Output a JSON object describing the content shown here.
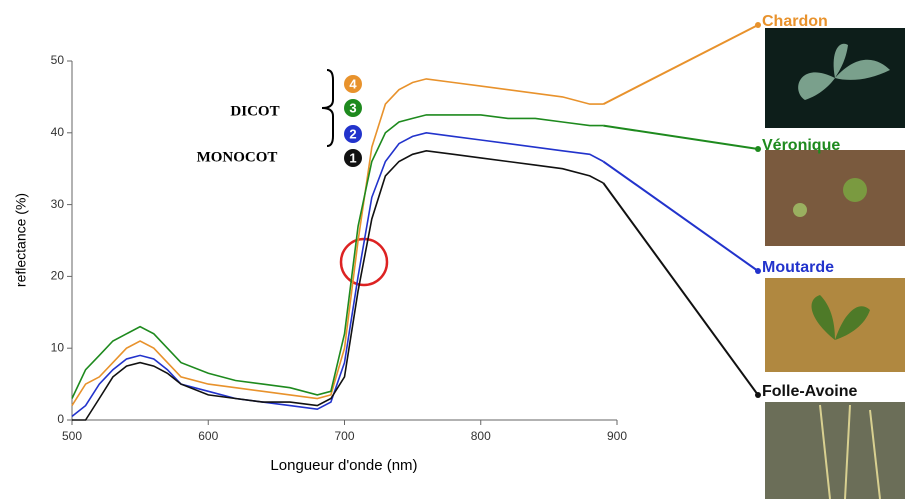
{
  "chart_data": {
    "type": "line",
    "xlabel": "Longueur d'onde (nm)",
    "ylabel": "reflectance (%)",
    "xlim": [
      500,
      900
    ],
    "ylim": [
      0,
      50
    ],
    "xticks": [
      500,
      600,
      700,
      800,
      900
    ],
    "yticks": [
      0,
      10,
      20,
      30,
      40,
      50
    ],
    "annotations": [
      "DICOT",
      "MONOCOT"
    ],
    "x": [
      500,
      510,
      520,
      530,
      540,
      550,
      560,
      570,
      580,
      600,
      620,
      640,
      660,
      680,
      690,
      700,
      710,
      720,
      730,
      740,
      750,
      760,
      780,
      800,
      820,
      840,
      860,
      880,
      890
    ],
    "series": [
      {
        "name": "Chardon",
        "badge": "4",
        "color": "#e8922c",
        "values": [
          2,
          5,
          6,
          8,
          10,
          11,
          10,
          8,
          6,
          5,
          4.5,
          4,
          3.5,
          3,
          3.5,
          10,
          25,
          38,
          44,
          46,
          47,
          47.5,
          47,
          46.5,
          46,
          45.5,
          45,
          44,
          44
        ]
      },
      {
        "name": "Véronique",
        "badge": "3",
        "color": "#1e8a1e",
        "values": [
          3,
          7,
          9,
          11,
          12,
          13,
          12,
          10,
          8,
          6.5,
          5.5,
          5,
          4.5,
          3.5,
          4,
          12,
          27,
          36,
          40,
          41.5,
          42,
          42.5,
          42.5,
          42.5,
          42,
          42,
          41.5,
          41,
          41
        ]
      },
      {
        "name": "Moutarde",
        "badge": "2",
        "color": "#2233cc",
        "values": [
          0.5,
          2,
          5,
          7,
          8.5,
          9,
          8.5,
          7,
          5,
          4,
          3,
          2.5,
          2,
          1.5,
          2.5,
          8,
          20,
          31,
          36,
          38.5,
          39.5,
          40,
          39.5,
          39,
          38.5,
          38,
          37.5,
          37,
          36
        ]
      },
      {
        "name": "Folle-Avoine",
        "badge": "1",
        "color": "#111111",
        "values": [
          0,
          0,
          3,
          6,
          7.5,
          8,
          7.5,
          6.5,
          5,
          3.5,
          3,
          2.5,
          2.5,
          2,
          3,
          6,
          18,
          28,
          34,
          36,
          37,
          37.5,
          37,
          36.5,
          36,
          35.5,
          35,
          34,
          33
        ]
      }
    ]
  }
}
